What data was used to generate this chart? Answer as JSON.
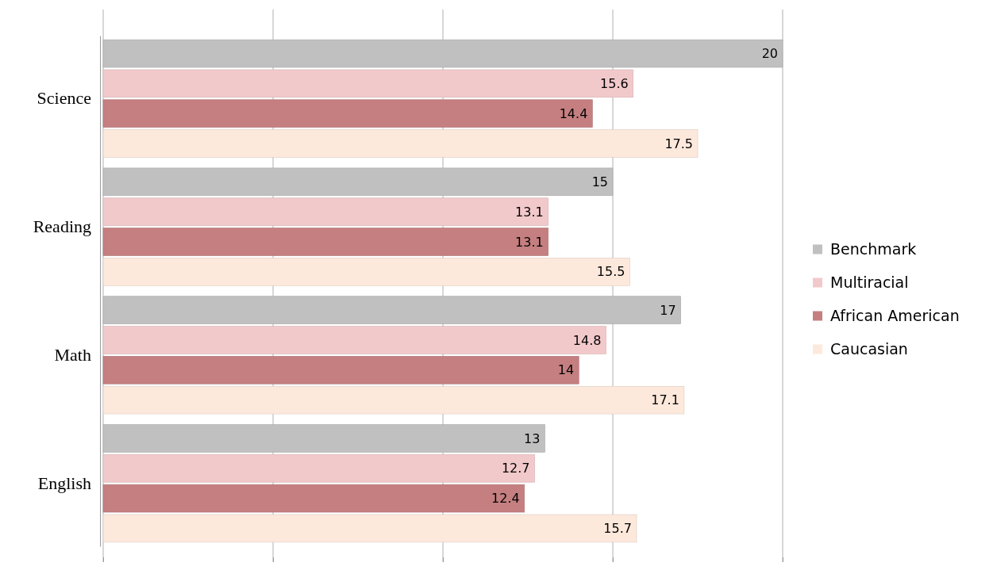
{
  "chart_data": {
    "type": "bar",
    "orientation": "horizontal",
    "categories": [
      "Science",
      "Reading",
      "Math",
      "English"
    ],
    "series": [
      {
        "name": "Benchmark",
        "color": "#c0c0c0",
        "values": [
          20,
          15,
          17,
          13
        ]
      },
      {
        "name": "Multiracial",
        "color": "#f2c9cb",
        "values": [
          15.6,
          13.1,
          14.8,
          12.7
        ]
      },
      {
        "name": "African American",
        "color": "#c57f80",
        "values": [
          14.4,
          13.1,
          14,
          12.4
        ]
      },
      {
        "name": "Caucasian",
        "color": "#fde9dc",
        "values": [
          17.5,
          15.5,
          17.1,
          15.7
        ]
      }
    ],
    "xlim": [
      0,
      20
    ],
    "xticks": [
      {
        "value": 0,
        "label": null
      },
      {
        "value": 5,
        "label": null
      },
      {
        "value": 10,
        "label": null
      },
      {
        "value": 15,
        "label": null
      },
      {
        "value": 20,
        "label": null
      }
    ],
    "grid": "x",
    "tick_labels": "y",
    "data_labels": true,
    "legend": "right"
  }
}
